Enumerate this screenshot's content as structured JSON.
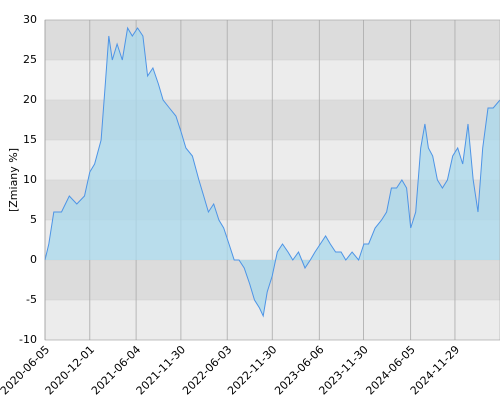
{
  "chart_data": {
    "type": "area",
    "y_label": "[Zmiany %]",
    "x": [
      "2020-06-05",
      "2020-06-20",
      "2020-07-10",
      "2020-08-10",
      "2020-09-10",
      "2020-10-10",
      "2020-11-10",
      "2020-12-01",
      "2020-12-20",
      "2021-01-15",
      "2021-02-01",
      "2021-02-15",
      "2021-03-01",
      "2021-03-20",
      "2021-04-10",
      "2021-05-01",
      "2021-05-20",
      "2021-06-10",
      "2021-07-01",
      "2021-07-20",
      "2021-08-10",
      "2021-09-01",
      "2021-09-20",
      "2021-10-15",
      "2021-11-10",
      "2021-12-01",
      "2021-12-20",
      "2022-01-15",
      "2022-02-10",
      "2022-03-01",
      "2022-03-20",
      "2022-04-10",
      "2022-05-01",
      "2022-05-20",
      "2022-06-10",
      "2022-07-01",
      "2022-07-20",
      "2022-08-10",
      "2022-09-01",
      "2022-09-20",
      "2022-10-10",
      "2022-10-25",
      "2022-11-10",
      "2022-11-30",
      "2022-12-20",
      "2023-01-10",
      "2023-02-01",
      "2023-02-20",
      "2023-03-15",
      "2023-04-10",
      "2023-05-01",
      "2023-05-20",
      "2023-06-10",
      "2023-07-01",
      "2023-07-20",
      "2023-08-10",
      "2023-09-01",
      "2023-09-20",
      "2023-10-15",
      "2023-11-10",
      "2023-12-01",
      "2023-12-20",
      "2024-01-15",
      "2024-02-10",
      "2024-03-01",
      "2024-03-20",
      "2024-04-10",
      "2024-05-01",
      "2024-05-20",
      "2024-06-05",
      "2024-06-25",
      "2024-07-15",
      "2024-08-01",
      "2024-08-15",
      "2024-09-01",
      "2024-09-20",
      "2024-10-10",
      "2024-10-30",
      "2024-11-20",
      "2024-12-10",
      "2024-12-30",
      "2025-01-20",
      "2025-02-10",
      "2025-03-01",
      "2025-03-20",
      "2025-04-10",
      "2025-05-01",
      "2025-05-28"
    ],
    "values": [
      0,
      2,
      6,
      6,
      8,
      7,
      8,
      11,
      12,
      15,
      22,
      28,
      25,
      27,
      25,
      29,
      28,
      29,
      28,
      23,
      24,
      22,
      20,
      19,
      18,
      16,
      14,
      13,
      10,
      8,
      6,
      7,
      5,
      4,
      2,
      0,
      0,
      -1,
      -3,
      -5,
      -6,
      -7,
      -4,
      -2,
      1,
      2,
      1,
      0,
      1,
      -1,
      0,
      1,
      2,
      3,
      2,
      1,
      1,
      0,
      1,
      0,
      2,
      2,
      4,
      5,
      6,
      9,
      9,
      10,
      9,
      4,
      6,
      14,
      17,
      14,
      13,
      10,
      9,
      10,
      13,
      14,
      12,
      17,
      10,
      6,
      14,
      19,
      19,
      20
    ],
    "color": "#4d94e6",
    "fill": "#a8d8ec",
    "xlim": [
      "2020-06-05",
      "2025-05-28"
    ],
    "xticks": [
      "2020-06-05",
      "2020-12-01",
      "2021-06-04",
      "2021-11-30",
      "2022-06-03",
      "2022-11-30",
      "2023-06-06",
      "2023-11-30",
      "2024-06-05",
      "2024-11-29"
    ],
    "ylim": [
      -10,
      30
    ],
    "yticks": [
      -10,
      -5,
      0,
      5,
      10,
      15,
      20,
      25,
      30
    ],
    "grid": true
  }
}
